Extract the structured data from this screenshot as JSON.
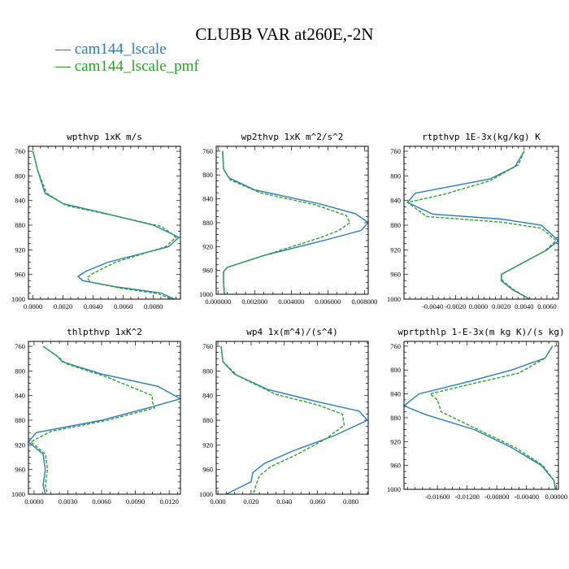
{
  "title": "CLUBB VAR at260E,-2N",
  "colors": {
    "series1": "#2b7bb9",
    "series2": "#2ca02c"
  },
  "legend": [
    {
      "label": "cam144_lscale",
      "color": "#2b7bb9"
    },
    {
      "label": "cam144_lscale_pmf",
      "color": "#2ca02c"
    }
  ],
  "chart_data": [
    {
      "type": "line",
      "title": "wpthvp  1xK m/s",
      "xlim": [
        -0.0003,
        0.0098
      ],
      "ylim": [
        1000,
        752
      ],
      "xticks": [
        "0.0000",
        "0.0020",
        "0.0040",
        "0.0060",
        "0.0080"
      ],
      "xtick_values": [
        0,
        0.002,
        0.004,
        0.006,
        0.008
      ],
      "yticks": [
        "760",
        "800",
        "840",
        "880",
        "920",
        "960",
        "1000"
      ],
      "ytick_values": [
        760,
        800,
        840,
        880,
        920,
        960,
        1000
      ],
      "series": [
        {
          "name": "cam144_lscale",
          "x": [
            0.0,
            0.0003,
            0.0008,
            0.002,
            0.005,
            0.008,
            0.0093,
            0.0097,
            0.009,
            0.005,
            0.0035,
            0.003,
            0.0033,
            0.0055,
            0.0085,
            0.0094
          ],
          "y": [
            760,
            790,
            828,
            845,
            862,
            880,
            895,
            900,
            915,
            940,
            955,
            963,
            970,
            980,
            990,
            1000
          ]
        },
        {
          "name": "cam144_lscale_pmf",
          "x": [
            0.0,
            0.0003,
            0.0009,
            0.0022,
            0.0055,
            0.0085,
            0.0093,
            0.0095,
            0.0088,
            0.0055,
            0.004,
            0.0036,
            0.0038,
            0.0058,
            0.0083,
            0.0092
          ],
          "y": [
            760,
            790,
            828,
            848,
            865,
            882,
            895,
            900,
            915,
            940,
            958,
            965,
            972,
            982,
            991,
            1000
          ]
        }
      ]
    },
    {
      "type": "line",
      "title": "wp2thvp  1xK m^2/s^2",
      "xlim": [
        -0.0001,
        0.0082
      ],
      "ylim": [
        1000,
        752
      ],
      "xticks": [
        "0.000000",
        "0.002000",
        "0.004000",
        "0.006000",
        "0.008000"
      ],
      "xtick_values": [
        0,
        0.002,
        0.004,
        0.006,
        0.008
      ],
      "yticks": [
        "760",
        "800",
        "840",
        "880",
        "920",
        "960",
        "1000"
      ],
      "ytick_values": [
        760,
        800,
        840,
        880,
        920,
        960,
        1000
      ],
      "series": [
        {
          "name": "cam144_lscale",
          "x": [
            0.00025,
            0.0003,
            0.0006,
            0.002,
            0.0055,
            0.0075,
            0.0082,
            0.0078,
            0.006,
            0.0025,
            0.0005,
            0.0003,
            0.0003,
            0.00035
          ],
          "y": [
            760,
            790,
            805,
            825,
            848,
            865,
            880,
            893,
            908,
            935,
            955,
            962,
            980,
            1000
          ]
        },
        {
          "name": "cam144_lscale_pmf",
          "x": [
            0.00025,
            0.0003,
            0.00065,
            0.0023,
            0.0053,
            0.007,
            0.0072,
            0.0066,
            0.0056,
            0.0025,
            0.0005,
            0.0003,
            0.0003,
            0.00035
          ],
          "y": [
            760,
            790,
            808,
            830,
            850,
            868,
            880,
            893,
            905,
            935,
            955,
            962,
            980,
            1000
          ]
        }
      ]
    },
    {
      "type": "line",
      "title": "rtpthvp  1E-3x(kg/kg) K",
      "xlim": [
        -0.0065,
        0.007
      ],
      "ylim": [
        1000,
        752
      ],
      "xticks": [
        "-0.0040",
        "-0.0020",
        "0.0000",
        "0.0020",
        "0.0040",
        "0.0060"
      ],
      "xtick_values": [
        -0.004,
        -0.002,
        0,
        0.002,
        0.004,
        0.006
      ],
      "yticks": [
        "760",
        "800",
        "840",
        "880",
        "920",
        "960",
        "1000"
      ],
      "ytick_values": [
        760,
        800,
        840,
        880,
        920,
        960,
        1000
      ],
      "series": [
        {
          "name": "cam144_lscale",
          "x": [
            0.004,
            0.0032,
            0.001,
            -0.0055,
            -0.0062,
            -0.004,
            0.002,
            0.0055,
            0.007,
            0.006,
            0.0035,
            0.002,
            0.002,
            0.003,
            0.0045
          ],
          "y": [
            760,
            785,
            805,
            828,
            843,
            862,
            870,
            880,
            905,
            920,
            945,
            960,
            970,
            985,
            1000
          ]
        },
        {
          "name": "cam144_lscale_pmf",
          "x": [
            0.004,
            0.0035,
            0.001,
            -0.003,
            -0.0062,
            -0.0045,
            0.002,
            0.0055,
            0.0068,
            0.0058,
            0.0032,
            0.002,
            0.0021,
            0.0031,
            0.0045
          ],
          "y": [
            760,
            782,
            808,
            830,
            843,
            866,
            875,
            885,
            905,
            922,
            948,
            960,
            970,
            985,
            1000
          ]
        }
      ]
    },
    {
      "type": "line",
      "title": "thlpthvp  1xK^2",
      "xlim": [
        -0.0005,
        0.013
      ],
      "ylim": [
        1000,
        752
      ],
      "xticks": [
        "0.0000",
        "0.0030",
        "0.0060",
        "0.0090",
        "0.0120"
      ],
      "xtick_values": [
        0,
        0.003,
        0.006,
        0.009,
        0.012
      ],
      "yticks": [
        "760",
        "800",
        "840",
        "880",
        "920",
        "960",
        "1000"
      ],
      "ytick_values": [
        760,
        800,
        840,
        880,
        920,
        960,
        1000
      ],
      "series": [
        {
          "name": "cam144_lscale",
          "x": [
            0.0008,
            0.002,
            0.0025,
            0.006,
            0.011,
            0.013,
            0.0105,
            0.006,
            0.0002,
            -0.0005,
            0.0008,
            0.001,
            0.0008,
            0.001
          ],
          "y": [
            760,
            775,
            785,
            805,
            825,
            845,
            858,
            880,
            900,
            915,
            935,
            960,
            985,
            1000
          ]
        },
        {
          "name": "cam144_lscale_pmf",
          "x": [
            0.0008,
            0.0022,
            0.0028,
            0.0065,
            0.0105,
            0.0105,
            0.0107,
            0.0065,
            0.0015,
            -0.0003,
            0.001,
            0.0012,
            0.001,
            0.0012
          ],
          "y": [
            760,
            778,
            788,
            810,
            840,
            850,
            860,
            880,
            898,
            915,
            935,
            960,
            985,
            1000
          ]
        }
      ]
    },
    {
      "type": "line",
      "title": "wp4  1x(m^4)/(s^4)",
      "xlim": [
        -0.001,
        0.0905
      ],
      "ylim": [
        1000,
        752
      ],
      "xticks": [
        "0.000",
        "0.020",
        "0.040",
        "0.060",
        "0.080"
      ],
      "xtick_values": [
        0,
        0.02,
        0.04,
        0.06,
        0.08
      ],
      "yticks": [
        "760",
        "800",
        "840",
        "880",
        "920",
        "960",
        "1000"
      ],
      "ytick_values": [
        760,
        800,
        840,
        880,
        920,
        960,
        1000
      ],
      "series": [
        {
          "name": "cam144_lscale",
          "x": [
            0.002,
            0.003,
            0.01,
            0.03,
            0.06,
            0.085,
            0.09,
            0.07,
            0.045,
            0.028,
            0.021,
            0.02,
            0.01,
            0.005
          ],
          "y": [
            760,
            785,
            805,
            830,
            850,
            865,
            880,
            905,
            930,
            950,
            965,
            980,
            993,
            1000
          ]
        },
        {
          "name": "cam144_lscale_pmf",
          "x": [
            0.002,
            0.003,
            0.012,
            0.035,
            0.06,
            0.075,
            0.076,
            0.065,
            0.048,
            0.032,
            0.025,
            0.023,
            0.022,
            0.021
          ],
          "y": [
            760,
            785,
            808,
            838,
            855,
            870,
            888,
            910,
            935,
            955,
            970,
            985,
            995,
            1000
          ]
        }
      ]
    },
    {
      "type": "line",
      "title": "wprtpthlp  1-E-3x(m kg K)/(s kg)",
      "xlim": [
        -0.0205,
        0.0003
      ],
      "ylim": [
        1000,
        752
      ],
      "xticks": [
        "-0.01600",
        "-0.01200",
        "-0.00800",
        "-0.00400",
        "0.00000"
      ],
      "xtick_values": [
        -0.016,
        -0.012,
        -0.008,
        -0.004,
        0
      ],
      "yticks": [
        "760",
        "800",
        "840",
        "880",
        "920",
        "960",
        "1000"
      ],
      "ytick_values": [
        760,
        800,
        840,
        880,
        920,
        960,
        1000
      ],
      "series": [
        {
          "name": "cam144_lscale",
          "x": [
            -0.0005,
            -0.0015,
            -0.006,
            -0.012,
            -0.0185,
            -0.0205,
            -0.0175,
            -0.011,
            -0.006,
            -0.002,
            -0.0003,
            -0.0001
          ],
          "y": [
            760,
            780,
            800,
            820,
            840,
            860,
            875,
            900,
            930,
            960,
            985,
            1000
          ]
        },
        {
          "name": "cam144_lscale_pmf",
          "x": [
            -0.0005,
            -0.0015,
            -0.005,
            -0.012,
            -0.017,
            -0.016,
            -0.0155,
            -0.0105,
            -0.0055,
            -0.0018,
            -0.0003,
            -0.0001
          ],
          "y": [
            760,
            780,
            805,
            825,
            840,
            850,
            870,
            900,
            930,
            960,
            985,
            1000
          ]
        }
      ]
    }
  ]
}
